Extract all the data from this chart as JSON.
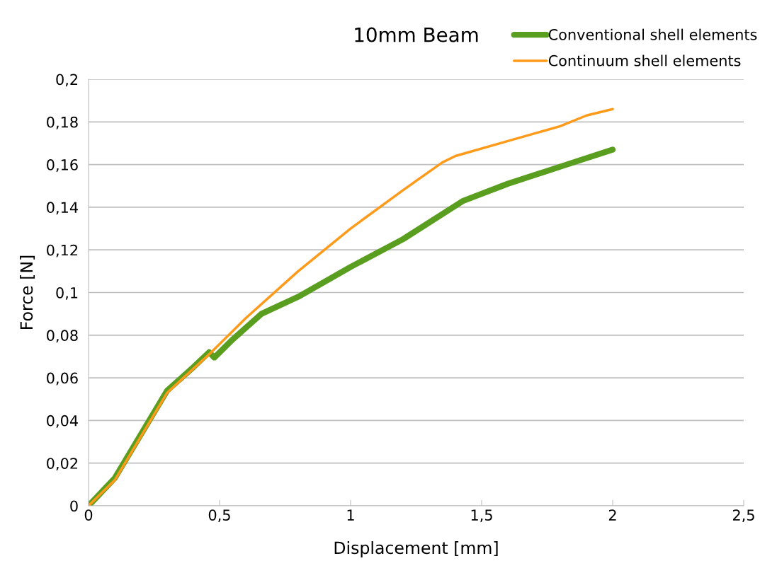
{
  "chart_data": {
    "type": "line",
    "title": "10mm Beam",
    "xlabel": "Displacement [mm]",
    "ylabel": "Force [N]",
    "xlim": [
      0,
      2.5
    ],
    "xticks": [
      {
        "value": 0,
        "label": "0"
      },
      {
        "value": 0.5,
        "label": "0,5"
      },
      {
        "value": 1,
        "label": "1"
      },
      {
        "value": 1.5,
        "label": "1,5"
      },
      {
        "value": 2,
        "label": "2"
      },
      {
        "value": 2.5,
        "label": "2,5"
      }
    ],
    "ylim": [
      0,
      0.2
    ],
    "yticks": [
      {
        "value": 0,
        "label": "0"
      },
      {
        "value": 0.02,
        "label": "0,02"
      },
      {
        "value": 0.04,
        "label": "0,04"
      },
      {
        "value": 0.06,
        "label": "0,06"
      },
      {
        "value": 0.08,
        "label": "0,08"
      },
      {
        "value": 0.1,
        "label": "0,1"
      },
      {
        "value": 0.12,
        "label": "0,12"
      },
      {
        "value": 0.14,
        "label": "0,14"
      },
      {
        "value": 0.16,
        "label": "0,16"
      },
      {
        "value": 0.18,
        "label": "0,18"
      },
      {
        "value": 0.2,
        "label": "0,2"
      }
    ],
    "grid": "y",
    "legend": "top right",
    "marker": "none",
    "line_style": "solid",
    "series": [
      {
        "name": "Conventional shell elements",
        "color": "#5a9e1f",
        "x": [
          0,
          0.1,
          0.3,
          0.4,
          0.46,
          0.48,
          0.55,
          0.66,
          0.8,
          1.0,
          1.2,
          1.43,
          1.6,
          1.8,
          2.0
        ],
        "values": [
          0,
          0.013,
          0.054,
          0.065,
          0.072,
          0.0695,
          0.078,
          0.09,
          0.098,
          0.112,
          0.125,
          0.143,
          0.151,
          0.159,
          0.167
        ]
      },
      {
        "name": "Continuum shell elements",
        "color": "#ff9a1a",
        "x": [
          0,
          0.1,
          0.3,
          0.46,
          0.6,
          0.8,
          1.0,
          1.2,
          1.35,
          1.4,
          1.6,
          1.8,
          1.9,
          2.0
        ],
        "values": [
          0,
          0.012,
          0.053,
          0.071,
          0.088,
          0.11,
          0.13,
          0.148,
          0.161,
          0.164,
          0.171,
          0.178,
          0.183,
          0.186
        ]
      }
    ]
  }
}
